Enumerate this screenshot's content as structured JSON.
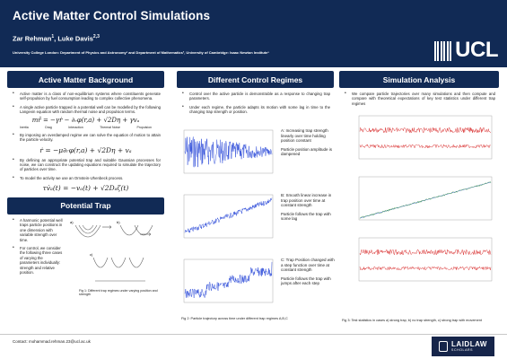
{
  "header": {
    "title": "Active Matter Control Simulations",
    "author1": "Zar Rehman",
    "author1_sup": "1",
    "author_sep": ", ",
    "author2": "Luke Davis",
    "author2_sup": "2,3",
    "affiliation": "University College London: Department of Physics and Astronomy¹ and Department of Mathematics², University of Cambridge: Isaac Newton Institute³",
    "logo_text": "UCL"
  },
  "background": {
    "heading": "Active Matter Background",
    "bullet1": "Active matter is a class of non-equilibrium systems where constituents generate self-propulsion by fuel consumption leading to complex collective phenomena.",
    "bullet2": "A single active particle trapped in a potential well can be modelled by the following Langevin equation with random thermal noise and propulsion terms.",
    "eq1": "mr̈ = −γṙ − ∂ᵣφ(r,a) + √2Dη + γvₐ",
    "eq1_labels": [
      "Inertia",
      "Drag",
      "Interaction",
      "Thermal Noise",
      "Propulsion"
    ],
    "bullet3": "By imposing an overdamped regime we can solve the equation of motion to attain the particle velocity.",
    "eq2": "ṙ = −μ∂ᵣφ(r,a) + √2Dη + vₐ",
    "bullet4": "By defining an appropriate potential trap and suitable Gaussian processes for noise, we can construct the updating equations required to simulate the trajectory of particles over time.",
    "bullet5": "To model the activity we use an Ornstein-Uhenbeck process.",
    "eq3": "τv̇ₐ(t) = −vₐ(t) + √2Dₐζ(t)"
  },
  "trap": {
    "heading": "Potential Trap",
    "bullet1": "A harmonic potential well traps particle positions in one dimension with variable strength over time.",
    "bullet2": "For control, we consider the following three cases of varying the parameters individually: strength and relative position.",
    "fig_labels": [
      "a)",
      "b)",
      "c)"
    ],
    "caption": "Fig 1: Different trap regimes under varying position and strength"
  },
  "regimes": {
    "heading": "Different Control Regimes",
    "bullet1": "Control over the active particle is demonstrable as a response to changing trap parameters.",
    "bullet2": "Under each regime, the particle adapts its motion with some lag in time to the changing trap strength or position.",
    "a_text": "A: Increasing trap strength linearly over time holding position constant",
    "a_note": "Particle position amplitude is dampened",
    "b_text": "B: Smooth linear increase in trap position over time at constant strength",
    "b_note": "Particle follows the trap with some lag",
    "c_text": "C: Trap Position changed with a step function over time at constant strength",
    "c_note": "Particle follows the trap with jumps after each step",
    "caption": "Fig 2: Particle trajectory across time under different trap regimes A,B,C"
  },
  "simulation": {
    "heading": "Simulation Analysis",
    "bullet1": "We compare particle trajectories over many simulations and then compute and compare with theoretical expectations of key test statistics under different trap regimes",
    "caption": "Fig 3: Test statistics in cases a) strong trap, b) no trap strength, c) strong trap with movement"
  },
  "footer": {
    "contact": "Contact: mohammad.rehman.23@ucl.ac.uk",
    "sponsor": "LAIDLAW",
    "sponsor_sub": "SCHOLARS"
  },
  "colors": {
    "header_bg": "#112a55",
    "trace_blue": "#1f3fd6",
    "trace_red": "#d62020",
    "trace_green": "#3a9a3a"
  }
}
